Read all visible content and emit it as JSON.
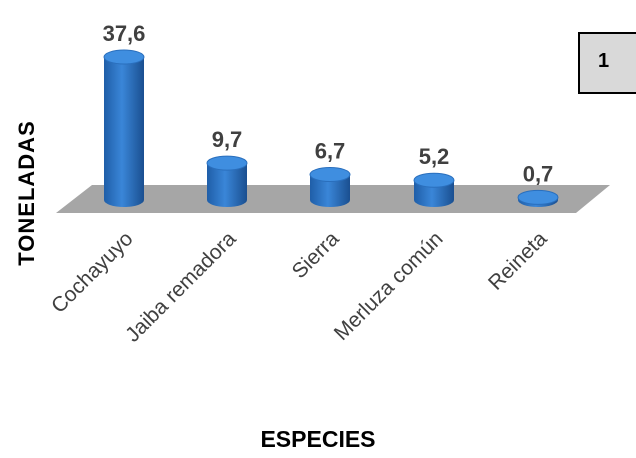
{
  "chart_data": {
    "type": "bar",
    "categories": [
      "Cochayuyo",
      "Jaiba remadora",
      "Sierra",
      "Merluza común",
      "Reineta"
    ],
    "values": [
      37.6,
      9.7,
      6.7,
      5.2,
      0.7
    ],
    "value_labels": [
      "37,6",
      "9,7",
      "6,7",
      "5,2",
      "0,7"
    ],
    "xlabel": "ESPECIES",
    "ylabel": "TONELADAS",
    "ylim": [
      0,
      40
    ],
    "grid": false,
    "style": "3d-cylinder",
    "bar_color": "#2e75c8",
    "floor_color": "#a6a6a6"
  },
  "badge": {
    "label": "1"
  }
}
